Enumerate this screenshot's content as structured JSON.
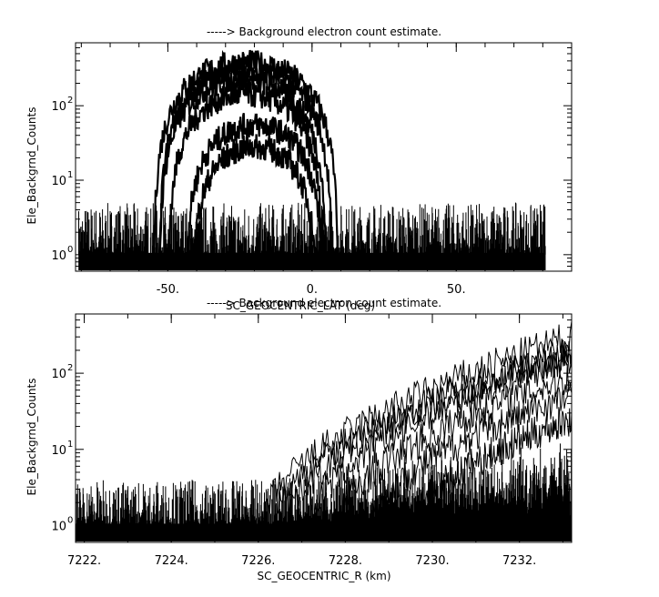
{
  "chart_data": [
    {
      "type": "line",
      "title": "-----> Background electron count estimate.",
      "xlabel": "SC_GEOCENTRIC_LAT (deg)",
      "ylabel": "Ele_Backgrnd_Counts",
      "xlim": [
        -82,
        90
      ],
      "ylim": [
        0.6,
        700
      ],
      "yscale": "log",
      "x_ticks": [
        {
          "value": -50,
          "label": "-50."
        },
        {
          "value": 0,
          "label": "0."
        },
        {
          "value": 50,
          "label": "50."
        }
      ],
      "y_ticks": [
        {
          "value": 1,
          "label": "10",
          "exp": "0"
        },
        {
          "value": 10,
          "label": "10",
          "exp": "1"
        },
        {
          "value": 100,
          "label": "10",
          "exp": "2"
        }
      ],
      "noise_floor": {
        "x_range": [
          -81,
          81
        ],
        "y_range": [
          1,
          5
        ],
        "description": "dense spikes between 1 and ~5 counts"
      },
      "series": [
        {
          "peak_x": -23,
          "peak_y": 380,
          "half_width": 32
        },
        {
          "peak_x": -23,
          "peak_y": 300,
          "half_width": 30
        },
        {
          "peak_x": -24,
          "peak_y": 220,
          "half_width": 29
        },
        {
          "peak_x": -23,
          "peak_y": 140,
          "half_width": 27
        },
        {
          "peak_x": -20,
          "peak_y": 55,
          "half_width": 24
        },
        {
          "peak_x": -20,
          "peak_y": 28,
          "half_width": 22
        }
      ],
      "grid": false,
      "legend": "none"
    },
    {
      "type": "line",
      "title": "-----> Background electron count estimate.",
      "xlabel": "SC_GEOCENTRIC_R (km)",
      "ylabel": "Ele_Backgrnd_Counts",
      "xlim": [
        7221.8,
        7233.2
      ],
      "ylim": [
        0.6,
        600
      ],
      "yscale": "log",
      "x_ticks": [
        {
          "value": 7222,
          "label": "7222."
        },
        {
          "value": 7224,
          "label": "7224."
        },
        {
          "value": 7226,
          "label": "7226."
        },
        {
          "value": 7228,
          "label": "7228."
        },
        {
          "value": 7230,
          "label": "7230."
        },
        {
          "value": 7232,
          "label": "7232."
        }
      ],
      "y_ticks": [
        {
          "value": 1,
          "label": "10",
          "exp": "0"
        },
        {
          "value": 10,
          "label": "10",
          "exp": "1"
        },
        {
          "value": 100,
          "label": "10",
          "exp": "2"
        }
      ],
      "noise_floor": {
        "x_range": [
          7221.8,
          7233.2
        ],
        "y_range": [
          1,
          4
        ],
        "description": "spikes between 1 and ~4 counts"
      },
      "series": [
        {
          "x_start": 7226.1,
          "y_end": 300
        },
        {
          "x_start": 7226.3,
          "y_end": 200
        },
        {
          "x_start": 7226.6,
          "y_end": 180
        },
        {
          "x_start": 7227.2,
          "y_end": 160
        },
        {
          "x_start": 7227.8,
          "y_end": 90
        },
        {
          "x_start": 7228.6,
          "y_end": 50
        },
        {
          "x_start": 7229.6,
          "y_end": 25
        }
      ],
      "grid": false,
      "legend": "none"
    }
  ]
}
